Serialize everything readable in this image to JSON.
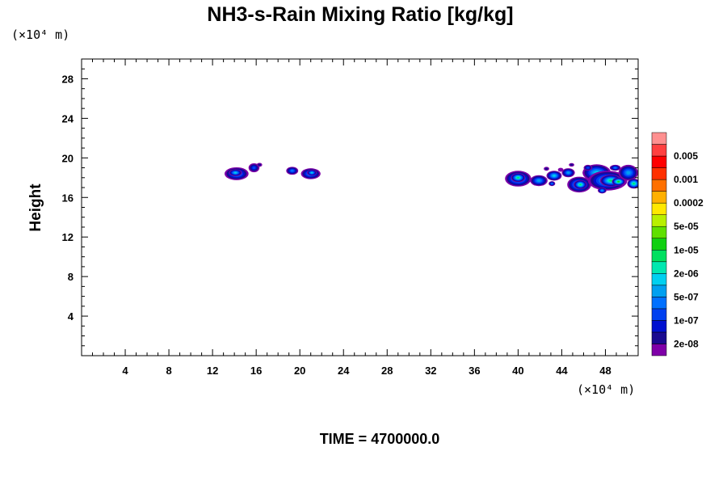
{
  "chart_data": {
    "type": "heatmap",
    "title": "NH3-s-Rain Mixing Ratio [kg/kg]",
    "xlabel": "",
    "ylabel": "Height",
    "x_unit_label": "(×10⁴ m)",
    "y_unit_label": "(×10⁴ m)",
    "footer": "TIME = 4700000.0",
    "xlim": [
      0,
      51
    ],
    "ylim": [
      0,
      30
    ],
    "x_ticks": [
      4,
      8,
      12,
      16,
      20,
      24,
      28,
      32,
      36,
      40,
      44,
      48
    ],
    "y_ticks": [
      4,
      8,
      12,
      16,
      20,
      24,
      28
    ],
    "x_tick_labels": [
      "4",
      "8",
      "12",
      "16",
      "20",
      "24",
      "28",
      "32",
      "36",
      "40",
      "44",
      "48"
    ],
    "y_tick_labels": [
      "4",
      "8",
      "12",
      "16",
      "20",
      "24",
      "28"
    ],
    "colorbar": {
      "colors": [
        "#7f00a8",
        "#1a0a90",
        "#0010d0",
        "#0040f0",
        "#0070ff",
        "#00a0f0",
        "#00d0f0",
        "#00e8b0",
        "#00e060",
        "#10d010",
        "#60e000",
        "#b8f000",
        "#ffe800",
        "#ffb000",
        "#ff7000",
        "#ff3000",
        "#ff0000",
        "#ff4040",
        "#ff9090"
      ],
      "labels": [
        "2e-08",
        "1e-07",
        "5e-07",
        "2e-06",
        "1e-05",
        "5e-05",
        "0.0002",
        "0.001",
        "0.005"
      ]
    },
    "blobs": [
      {
        "cx": 14.2,
        "cy": 18.4,
        "rx": 1.1,
        "ry": 0.65,
        "level": 5
      },
      {
        "cx": 14.1,
        "cy": 18.5,
        "rx": 0.6,
        "ry": 0.35,
        "level": 6
      },
      {
        "cx": 15.8,
        "cy": 19.0,
        "rx": 0.5,
        "ry": 0.45,
        "level": 3
      },
      {
        "cx": 16.3,
        "cy": 19.3,
        "rx": 0.25,
        "ry": 0.2,
        "level": 1
      },
      {
        "cx": 19.3,
        "cy": 18.7,
        "rx": 0.55,
        "ry": 0.4,
        "level": 4
      },
      {
        "cx": 21.0,
        "cy": 18.4,
        "rx": 0.9,
        "ry": 0.55,
        "level": 5
      },
      {
        "cx": 21.1,
        "cy": 18.5,
        "rx": 0.45,
        "ry": 0.3,
        "level": 6
      },
      {
        "cx": 40.0,
        "cy": 17.9,
        "rx": 1.2,
        "ry": 0.8,
        "level": 6
      },
      {
        "cx": 40.0,
        "cy": 18.0,
        "rx": 0.65,
        "ry": 0.45,
        "level": 8
      },
      {
        "cx": 41.9,
        "cy": 17.7,
        "rx": 0.8,
        "ry": 0.55,
        "level": 5
      },
      {
        "cx": 43.3,
        "cy": 18.2,
        "rx": 0.7,
        "ry": 0.5,
        "level": 6
      },
      {
        "cx": 44.6,
        "cy": 18.5,
        "rx": 0.6,
        "ry": 0.45,
        "level": 5
      },
      {
        "cx": 45.6,
        "cy": 17.3,
        "rx": 1.1,
        "ry": 0.8,
        "level": 6
      },
      {
        "cx": 45.7,
        "cy": 17.3,
        "rx": 0.6,
        "ry": 0.45,
        "level": 8
      },
      {
        "cx": 47.2,
        "cy": 18.5,
        "rx": 1.3,
        "ry": 0.85,
        "level": 6
      },
      {
        "cx": 48.2,
        "cy": 17.7,
        "rx": 1.8,
        "ry": 1.0,
        "level": 6
      },
      {
        "cx": 48.5,
        "cy": 17.7,
        "rx": 1.0,
        "ry": 0.6,
        "level": 8
      },
      {
        "cx": 49.2,
        "cy": 17.6,
        "rx": 0.6,
        "ry": 0.4,
        "level": 9
      },
      {
        "cx": 50.1,
        "cy": 18.5,
        "rx": 0.9,
        "ry": 0.8,
        "level": 5
      },
      {
        "cx": 50.6,
        "cy": 17.4,
        "rx": 0.6,
        "ry": 0.5,
        "level": 8
      },
      {
        "cx": 46.4,
        "cy": 19.0,
        "rx": 0.4,
        "ry": 0.3,
        "level": 3
      },
      {
        "cx": 48.9,
        "cy": 19.0,
        "rx": 0.5,
        "ry": 0.3,
        "level": 4
      },
      {
        "cx": 42.6,
        "cy": 18.9,
        "rx": 0.25,
        "ry": 0.2,
        "level": 1
      },
      {
        "cx": 43.9,
        "cy": 18.8,
        "rx": 0.25,
        "ry": 0.2,
        "level": 0
      },
      {
        "cx": 44.9,
        "cy": 19.3,
        "rx": 0.25,
        "ry": 0.18,
        "level": 1
      },
      {
        "cx": 47.7,
        "cy": 16.7,
        "rx": 0.4,
        "ry": 0.3,
        "level": 5
      },
      {
        "cx": 43.1,
        "cy": 17.4,
        "rx": 0.3,
        "ry": 0.25,
        "level": 4
      }
    ]
  }
}
